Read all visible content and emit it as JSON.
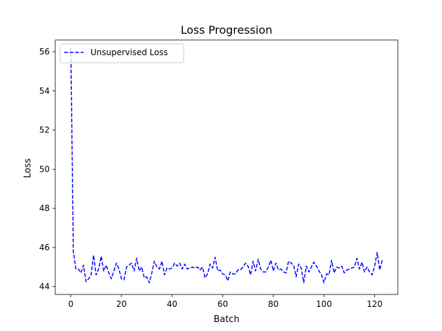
{
  "chart_data": {
    "type": "line",
    "title": "Loss Progression",
    "xlabel": "Batch",
    "ylabel": "Loss",
    "xlim": [
      -6.15,
      129.15
    ],
    "ylim": [
      43.6,
      56.6
    ],
    "xticks": [
      0,
      20,
      40,
      60,
      80,
      100,
      120
    ],
    "yticks": [
      44,
      46,
      48,
      50,
      52,
      54,
      56
    ],
    "grid": false,
    "legend_position": "upper-left",
    "series": [
      {
        "name": "Unsupervised Loss",
        "color": "#0000ff",
        "line_style": "dashed",
        "x": [
          0,
          1,
          2,
          3,
          4,
          5,
          6,
          7,
          8,
          9,
          10,
          11,
          12,
          13,
          14,
          15,
          16,
          17,
          18,
          19,
          20,
          21,
          22,
          23,
          24,
          25,
          26,
          27,
          28,
          29,
          30,
          31,
          32,
          33,
          34,
          35,
          36,
          37,
          38,
          39,
          40,
          41,
          42,
          43,
          44,
          45,
          46,
          47,
          48,
          49,
          50,
          51,
          52,
          53,
          54,
          55,
          56,
          57,
          58,
          59,
          60,
          61,
          62,
          63,
          64,
          65,
          66,
          67,
          68,
          69,
          70,
          71,
          72,
          73,
          74,
          75,
          76,
          77,
          78,
          79,
          80,
          81,
          82,
          83,
          84,
          85,
          86,
          87,
          88,
          89,
          90,
          91,
          92,
          93,
          94,
          95,
          96,
          97,
          98,
          99,
          100,
          101,
          102,
          103,
          104,
          105,
          106,
          107,
          108,
          109,
          110,
          111,
          112,
          113,
          114,
          115,
          116,
          117,
          118,
          119,
          120,
          121,
          122,
          123
        ],
        "y": [
          56.2,
          45.8,
          44.9,
          44.9,
          44.7,
          45.1,
          44.25,
          44.4,
          44.6,
          45.6,
          44.6,
          44.9,
          45.55,
          44.8,
          45.1,
          44.7,
          44.4,
          44.8,
          45.2,
          44.9,
          44.4,
          44.35,
          45.0,
          45.1,
          45.2,
          44.8,
          45.45,
          44.8,
          45.0,
          44.45,
          44.5,
          44.2,
          44.7,
          45.3,
          45.0,
          44.9,
          45.3,
          44.6,
          44.95,
          44.9,
          44.95,
          45.2,
          45.05,
          45.2,
          44.9,
          45.15,
          44.9,
          44.95,
          45.0,
          44.95,
          45.0,
          44.85,
          45.0,
          44.45,
          44.65,
          45.15,
          44.95,
          45.5,
          44.8,
          44.85,
          44.65,
          44.6,
          44.3,
          44.75,
          44.65,
          44.65,
          44.85,
          44.85,
          45.0,
          45.2,
          45.05,
          44.6,
          45.3,
          44.8,
          45.4,
          44.9,
          44.75,
          44.75,
          45.0,
          45.35,
          44.8,
          45.2,
          44.85,
          44.9,
          44.75,
          44.7,
          45.3,
          45.2,
          45.1,
          44.5,
          45.15,
          44.95,
          44.2,
          45.05,
          44.75,
          45.0,
          45.25,
          45.05,
          44.8,
          44.6,
          44.2,
          44.65,
          44.6,
          45.35,
          44.7,
          45.0,
          44.95,
          45.05,
          44.7,
          44.85,
          44.9,
          44.95,
          45.0,
          45.45,
          44.9,
          45.25,
          44.75,
          45.0,
          44.75,
          44.6,
          45.05,
          45.75,
          44.85,
          45.35
        ]
      }
    ]
  }
}
